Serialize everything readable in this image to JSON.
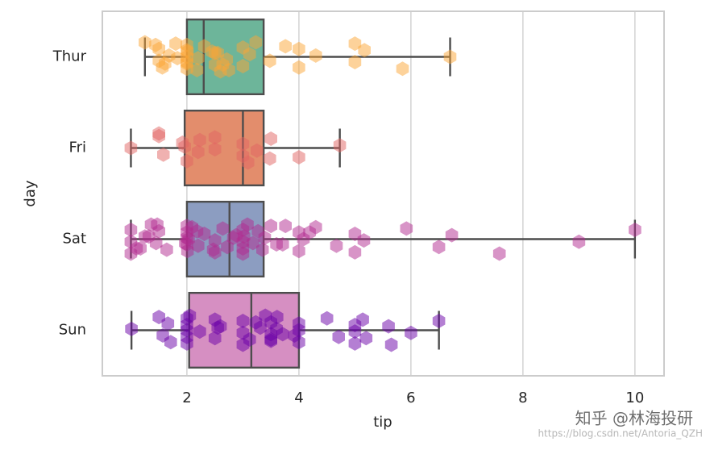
{
  "chart_data": {
    "type": "box",
    "orient": "h",
    "xlabel": "tip",
    "ylabel": "day",
    "categories": [
      "Thur",
      "Fri",
      "Sat",
      "Sun"
    ],
    "xlim": [
      0.49,
      10.52
    ],
    "xticks": [
      2,
      4,
      6,
      8,
      10
    ],
    "grid": true,
    "box_colors": [
      "#6db59a",
      "#e38d6c",
      "#8c9dc1",
      "#d68fc2"
    ],
    "point_colors": [
      "#fca636",
      "#e16462",
      "#b12a90",
      "#6a00a8"
    ],
    "boxes": [
      {
        "whislo": 1.25,
        "q1": 2.0,
        "med": 2.3,
        "q3": 3.37,
        "whishi": 6.7
      },
      {
        "whislo": 1.0,
        "q1": 1.96,
        "med": 3.0,
        "q3": 3.37,
        "whishi": 4.73
      },
      {
        "whislo": 1.0,
        "q1": 2.0,
        "med": 2.76,
        "q3": 3.37,
        "whishi": 10.0
      },
      {
        "whislo": 1.01,
        "q1": 2.04,
        "med": 3.15,
        "q3": 4.0,
        "whishi": 6.5
      }
    ],
    "points": [
      [
        1.25,
        1.5,
        1.5,
        1.56,
        1.68,
        1.8,
        2,
        2,
        2,
        2,
        2,
        2,
        2.01,
        2.18,
        2.2,
        2.31,
        2.5,
        2.5,
        2.6,
        2.71,
        3,
        3,
        3.12,
        3.23,
        3.48,
        4,
        4,
        4.3,
        5,
        5,
        5.17,
        5.85,
        6.7,
        1.44,
        1.61,
        2.45,
        2.75,
        1.83,
        3.76,
        2.64,
        2.55
      ],
      [
        1,
        1.5,
        1.58,
        1.92,
        2,
        2.5,
        2.5,
        3,
        3,
        3.09,
        3.25,
        3.5,
        4,
        4.73,
        1.5,
        2.2,
        2.23,
        3.48,
        1.96
      ],
      [
        1,
        1,
        1,
        1.17,
        1.25,
        1.36,
        1.45,
        1.5,
        1.64,
        2,
        2,
        2,
        2,
        2.01,
        2.03,
        2.09,
        2.2,
        2.31,
        2.5,
        2.5,
        2.64,
        2.72,
        2.88,
        3,
        3,
        3,
        3,
        3.02,
        3.08,
        3.18,
        3.27,
        3.35,
        3.39,
        3.5,
        3.6,
        4,
        4,
        4.08,
        4.3,
        4.67,
        5,
        5,
        5.16,
        5.92,
        6.5,
        6.73,
        7.58,
        9,
        10,
        1.1,
        1.32,
        1.47,
        1.97,
        2.18,
        2.47,
        2.83,
        3.76,
        3.71,
        4.19
      ],
      [
        1.01,
        1.5,
        1.57,
        1.66,
        1.71,
        2,
        2,
        2,
        2,
        2,
        2.23,
        2.5,
        2.5,
        2.6,
        3,
        3,
        3,
        3.12,
        3.31,
        3.4,
        3.5,
        3.5,
        3.5,
        3.6,
        3.61,
        3.92,
        4,
        4,
        4,
        4.5,
        4.71,
        5,
        5,
        5,
        5.14,
        5.2,
        5.6,
        5.65,
        6,
        6.5,
        3.5,
        2.55,
        2.05,
        3.71,
        3.23
      ]
    ],
    "watermark": "知乎 @林海投研",
    "watermark_url": "https://blog.csdn.net/Antoria_QZH"
  }
}
